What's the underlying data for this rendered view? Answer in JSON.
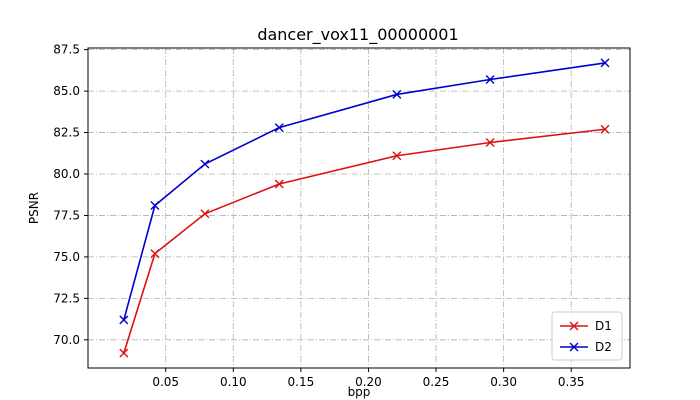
{
  "chart_data": {
    "type": "line",
    "title": "dancer_vox11_00000001",
    "xlabel": "bpp",
    "ylabel": "PSNR",
    "xlim": [
      -0.0075,
      0.3935
    ],
    "ylim": [
      68.3,
      87.6
    ],
    "xticks": [
      0.05,
      0.1,
      0.15,
      0.2,
      0.25,
      0.3,
      0.35
    ],
    "xtick_labels": [
      "0.05",
      "0.10",
      "0.15",
      "0.20",
      "0.25",
      "0.30",
      "0.35"
    ],
    "yticks": [
      70.0,
      72.5,
      75.0,
      77.5,
      80.0,
      82.5,
      85.0,
      87.5
    ],
    "ytick_labels": [
      "70.0",
      "72.5",
      "75.0",
      "77.5",
      "80.0",
      "82.5",
      "85.0",
      "87.5"
    ],
    "grid": true,
    "legend_position": "lower-right",
    "series": [
      {
        "name": "D1",
        "color": "#dd1111",
        "marker": "x",
        "x": [
          0.019,
          0.042,
          0.079,
          0.134,
          0.221,
          0.29,
          0.375
        ],
        "y": [
          69.2,
          75.2,
          77.6,
          79.4,
          81.1,
          81.9,
          82.7
        ]
      },
      {
        "name": "D2",
        "color": "#0000cc",
        "marker": "x",
        "x": [
          0.019,
          0.042,
          0.079,
          0.134,
          0.221,
          0.29,
          0.375
        ],
        "y": [
          71.2,
          78.1,
          80.6,
          82.8,
          84.8,
          85.7,
          86.7
        ]
      }
    ]
  }
}
